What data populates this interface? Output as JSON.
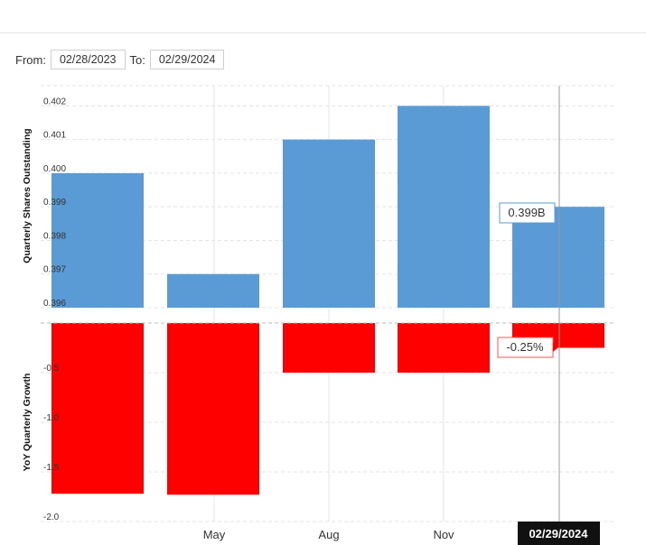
{
  "date_range": {
    "from_label": "From:",
    "from_value": "02/28/2023",
    "to_label": "To:",
    "to_value": "02/29/2024"
  },
  "chart_data": [
    {
      "type": "bar",
      "ylabel": "Quarterly Shares Outstanding",
      "ylim": [
        0.396,
        0.4026
      ],
      "yticks": [
        0.396,
        0.397,
        0.398,
        0.399,
        0.4,
        0.401,
        0.402
      ],
      "ytick_labels": [
        "0.396",
        "0.397",
        "0.398",
        "0.399",
        "0.400",
        "0.401",
        "0.402"
      ],
      "values": [
        0.4,
        0.397,
        0.401,
        0.402,
        0.399
      ],
      "color": "#5b9bd5",
      "tooltip": "0.399B"
    },
    {
      "type": "bar",
      "ylabel": "YoY Quarterly Growth",
      "ylim": [
        -2.0,
        0
      ],
      "yticks": [
        -0.5,
        -1.0,
        -1.5,
        -2.0
      ],
      "ytick_labels": [
        "-0.5",
        "-1.0",
        "-1.5",
        "-2.0"
      ],
      "values": [
        -1.72,
        -1.73,
        -0.5,
        -0.5,
        -0.25
      ],
      "color": "#ff0000",
      "tooltip": "-0.25%"
    }
  ],
  "x_axis": {
    "tick_labels": [
      "May",
      "Aug",
      "Nov"
    ],
    "crosshair_label": "02/29/2024"
  }
}
